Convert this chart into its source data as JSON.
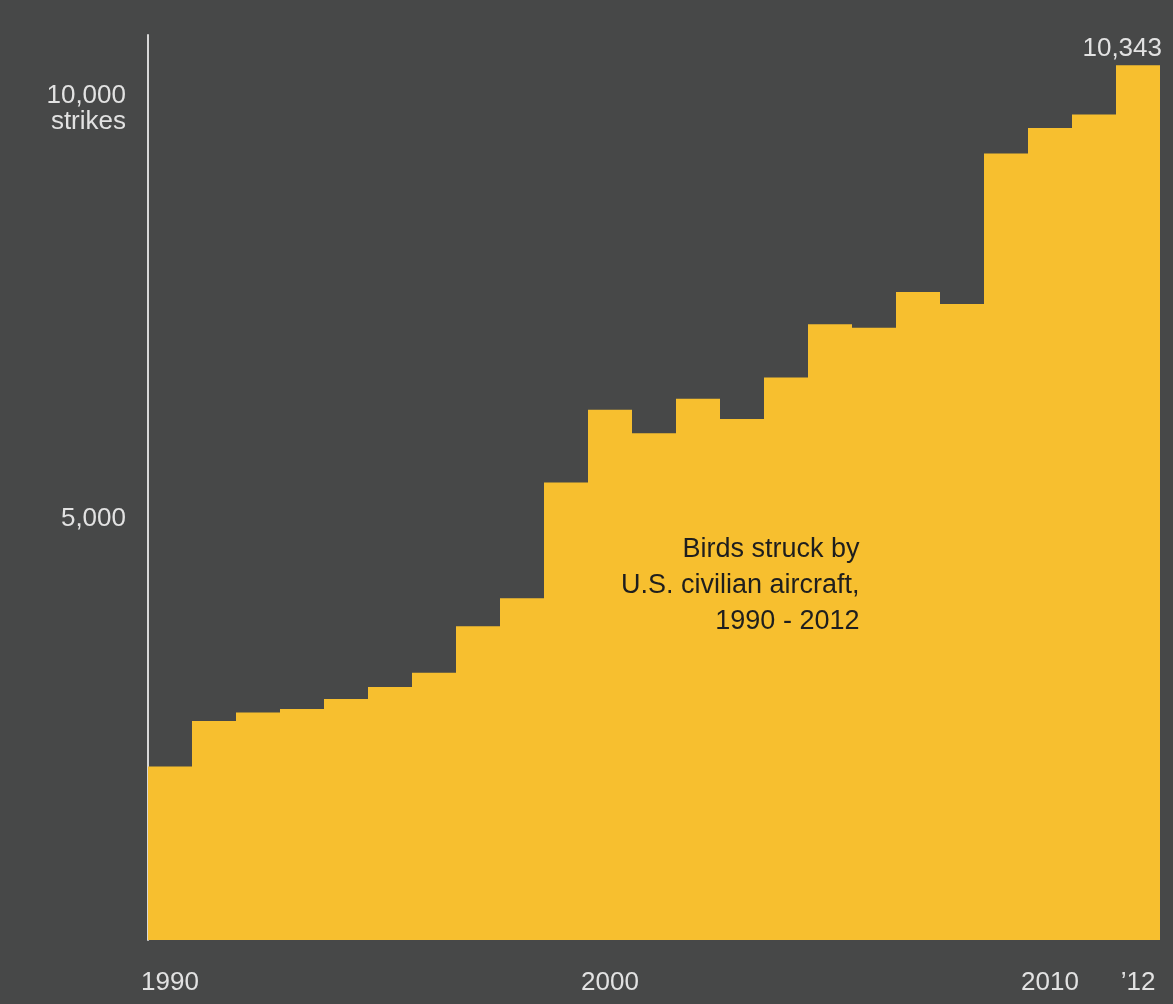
{
  "chart_data": {
    "type": "bar",
    "title": "Birds struck by\nU.S. civilian aircraft,\n1990 - 2012",
    "ylabel": "strikes",
    "categories": [
      "1990",
      null,
      null,
      null,
      null,
      null,
      null,
      null,
      null,
      null,
      "2000",
      null,
      null,
      null,
      null,
      null,
      null,
      null,
      null,
      null,
      "2010",
      null,
      "’12"
    ],
    "values": [
      2050,
      2590,
      2690,
      2730,
      2850,
      2990,
      3160,
      3710,
      4040,
      5410,
      6270,
      5990,
      6400,
      6160,
      6650,
      7280,
      7240,
      7660,
      7520,
      9300,
      9600,
      9760,
      10343
    ],
    "value_labels": [
      null,
      null,
      null,
      null,
      null,
      null,
      null,
      null,
      null,
      null,
      null,
      null,
      null,
      null,
      null,
      null,
      null,
      null,
      null,
      null,
      null,
      null,
      "10,343"
    ],
    "color": "#f7bf2f",
    "ylim": [
      0,
      10700
    ],
    "yticks": [
      {
        "value": 5000,
        "label": "5,000"
      },
      {
        "value": 10000,
        "label": "10,000"
      }
    ],
    "grid": false
  }
}
